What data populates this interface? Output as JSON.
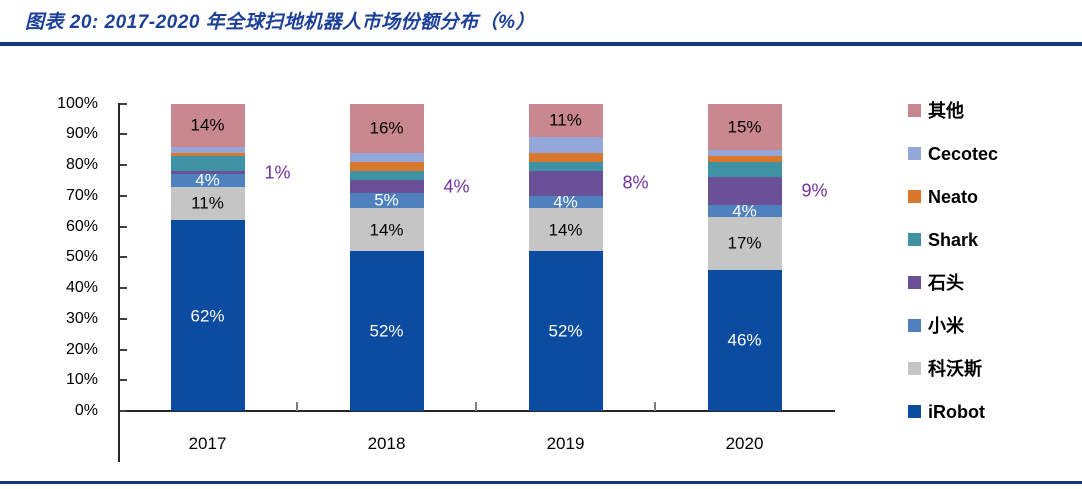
{
  "header": {
    "title": "图表 20:  2017-2020 年全球扫地机器人市场份额分布（%）"
  },
  "colors": {
    "title_blue": "#1c4098",
    "rule_navy": "#12387e",
    "outside_label_purple": "#7030a0"
  },
  "chart_data": {
    "type": "bar",
    "subtype": "stacked-100",
    "title": "2017-2020 年全球扫地机器人市场份额分布（%）",
    "categories": [
      "2017",
      "2018",
      "2019",
      "2020"
    ],
    "series": [
      {
        "name": "iRobot",
        "color": "#0b4ba0",
        "values": [
          62,
          52,
          52,
          46
        ],
        "label": "inside",
        "label_color": "#ffffff"
      },
      {
        "name": "科沃斯",
        "color": "#c6c5c5",
        "values": [
          11,
          14,
          14,
          17
        ],
        "label": "inside",
        "label_color": "#000000"
      },
      {
        "name": "小米",
        "color": "#4e81bd",
        "values": [
          4,
          5,
          4,
          4
        ],
        "label": "inside",
        "label_color": "#ffffff"
      },
      {
        "name": "石头",
        "color": "#6a5197",
        "values": [
          1,
          4,
          8,
          9
        ],
        "label": "outside",
        "label_color": "#7030a0"
      },
      {
        "name": "Shark",
        "color": "#3e92a4",
        "values": [
          5,
          3,
          3,
          5
        ],
        "label": "none",
        "label_color": ""
      },
      {
        "name": "Neato",
        "color": "#d9782d",
        "values": [
          1,
          3,
          3,
          2
        ],
        "label": "none",
        "label_color": ""
      },
      {
        "name": "Cecotec",
        "color": "#95a7d8",
        "values": [
          2,
          3,
          5,
          2
        ],
        "label": "none",
        "label_color": ""
      },
      {
        "name": "其他",
        "color": "#c9888f",
        "values": [
          14,
          16,
          11,
          15
        ],
        "label": "inside",
        "label_color": "#000000"
      }
    ],
    "ylabel": "",
    "xlabel": "",
    "ylim": [
      0,
      100
    ],
    "y_ticks": [
      "0%",
      "10%",
      "20%",
      "30%",
      "40%",
      "50%",
      "60%",
      "70%",
      "80%",
      "90%",
      "100%"
    ],
    "grid": false,
    "legend_position": "right",
    "legend": [
      {
        "label": "其他",
        "color": "#c9888f"
      },
      {
        "label": "Cecotec",
        "color": "#95a7d8"
      },
      {
        "label": "Neato",
        "color": "#d9782d"
      },
      {
        "label": "Shark",
        "color": "#3e92a4"
      },
      {
        "label": "石头",
        "color": "#6a5197"
      },
      {
        "label": "小米",
        "color": "#4e81bd"
      },
      {
        "label": "科沃斯",
        "color": "#c6c5c5"
      },
      {
        "label": "iRobot",
        "color": "#0b4ba0"
      }
    ]
  }
}
